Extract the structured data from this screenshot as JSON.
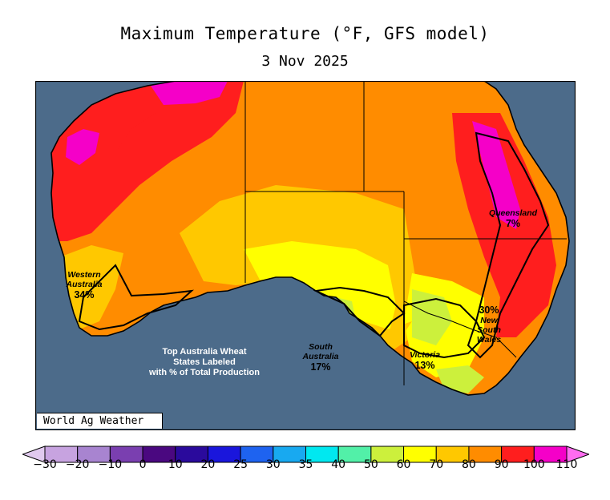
{
  "title": "Maximum Temperature (°F, GFS model)",
  "subtitle": "3 Nov 2025",
  "credit": "World Ag Weather",
  "note_lines": [
    "Top Australia Wheat",
    "States Labeled",
    "with % of Total Production"
  ],
  "ocean_color": "#4c6b8a",
  "states": [
    {
      "name_lines": [
        "Western",
        "Australia"
      ],
      "pct": "34%"
    },
    {
      "name_lines": [
        "South",
        "Australia"
      ],
      "pct": "17%"
    },
    {
      "name_lines": [
        "Victoria"
      ],
      "pct": "13%"
    },
    {
      "name_lines": [
        "New",
        "South",
        "Wales"
      ],
      "pct": "30%"
    },
    {
      "name_lines": [
        "Queensland"
      ],
      "pct": "7%"
    }
  ],
  "legend": {
    "ticks": [
      "-30",
      "-20",
      "-10",
      "0",
      "10",
      "20",
      "25",
      "30",
      "35",
      "40",
      "50",
      "60",
      "70",
      "80",
      "90",
      "100",
      "110"
    ],
    "colors": [
      "#e0c9ee",
      "#c7a3e0",
      "#a884d0",
      "#7a3fb0",
      "#4a0880",
      "#2a0a9c",
      "#1a16dc",
      "#1e63f0",
      "#18a9f0",
      "#00e8f0",
      "#52f0a8",
      "#ccf03c",
      "#ffff00",
      "#ffc800",
      "#ff8c00",
      "#ff1e1e",
      "#f500c8",
      "#ff6cf0"
    ]
  }
}
